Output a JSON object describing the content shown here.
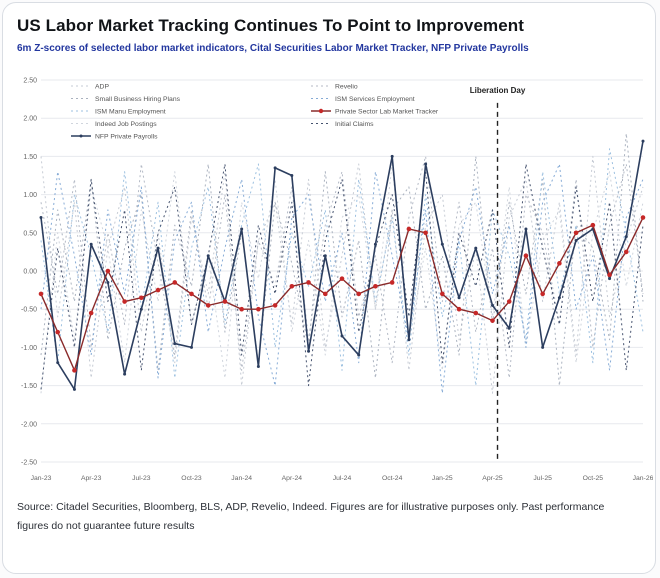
{
  "header": {
    "title": "US Labor Market Tracking Continues To Point to Improvement",
    "subtitle": "6m Z-scores of selected labor market indicators, Cital Securities Labor Market Tracker, NFP Private Payrolls"
  },
  "footer": {
    "source_text": "Source: Citadel Securities, Bloomberg, BLS, ADP, Revelio, Indeed. Figures are for illustrative purposes only. Past performance figures do not guarantee future results"
  },
  "colors": {
    "accent_blue": "#23379f",
    "grid": "#e7e9ee",
    "tick_text": "#666666",
    "annotation": "#222222"
  },
  "chart_data": {
    "type": "line",
    "title": "US Labor Market Tracking Continues To Point to Improvement",
    "ylabel": "6m Z-score",
    "ylim": [
      -2.5,
      2.5
    ],
    "ytick_step": 0.5,
    "xtick_every": 3,
    "grid": true,
    "legend_position": "top-inside",
    "annotation": {
      "label": "Liberation Day",
      "x_index": 27.3
    },
    "x": [
      "Jan-23",
      "Feb-23",
      "Mar-23",
      "Apr-23",
      "May-23",
      "Jun-23",
      "Jul-23",
      "Aug-23",
      "Sep-23",
      "Oct-23",
      "Nov-23",
      "Dec-23",
      "Jan-24",
      "Feb-24",
      "Mar-24",
      "Apr-24",
      "May-24",
      "Jun-24",
      "Jul-24",
      "Aug-24",
      "Sep-24",
      "Oct-24",
      "Nov-24",
      "Dec-24",
      "Jan-25",
      "Feb-25",
      "Mar-25",
      "Apr-25",
      "May-25",
      "Jun-25",
      "Jul-25",
      "Aug-25",
      "Sep-25",
      "Oct-25",
      "Nov-25",
      "Dec-25",
      "Jan-26"
    ],
    "series": [
      {
        "name": "ADP",
        "color": "#c6cbd4",
        "dash": "2 3",
        "width": 1,
        "marker": false,
        "marker_color": "",
        "marker_r": 0,
        "legend_col": 0,
        "legend_row": 0,
        "values": [
          1.5,
          -0.6,
          0.9,
          -1.4,
          0.3,
          1.1,
          -0.8,
          0.5,
          -1.2,
          0.7,
          -0.3,
          1.3,
          -1.5,
          0.4,
          0.9,
          -0.7,
          1.2,
          -1.0,
          0.2,
          1.4,
          -0.5,
          0.8,
          -1.3,
          0.6,
          1.0,
          -0.9,
          0.3,
          -1.6,
          0.7,
          1.2,
          -0.4,
          0.9,
          -1.1,
          1.5,
          -0.6,
          0.4,
          1.1
        ]
      },
      {
        "name": "Small Business Hiring Plans",
        "color": "#aab2bf",
        "dash": "2 3",
        "width": 1,
        "marker": false,
        "marker_color": "",
        "marker_r": 0,
        "legend_col": 0,
        "legend_row": 1,
        "values": [
          -1.1,
          0.8,
          -0.4,
          1.2,
          -0.9,
          0.3,
          1.0,
          -1.3,
          0.6,
          -0.2,
          1.4,
          -0.8,
          0.5,
          -1.2,
          0.9,
          0.1,
          -1.0,
          1.3,
          -0.6,
          0.4,
          -1.4,
          0.8,
          1.1,
          -0.5,
          0.2,
          -1.1,
          1.5,
          -0.7,
          0.9,
          -0.3,
          1.2,
          -1.5,
          0.6,
          0.3,
          -0.9,
          1.8,
          -0.4
        ]
      },
      {
        "name": "ISM Manu Employment",
        "color": "#9cc0e0",
        "dash": "2 3",
        "width": 1,
        "marker": false,
        "marker_color": "",
        "marker_r": 0,
        "legend_col": 0,
        "legend_row": 2,
        "values": [
          0.4,
          -1.2,
          1.0,
          0.2,
          -0.8,
          1.3,
          -0.5,
          0.9,
          -1.4,
          0.3,
          1.1,
          -0.7,
          0.6,
          1.4,
          -1.0,
          0.5,
          -0.2,
          0.8,
          -1.3,
          1.2,
          -0.4,
          0.7,
          -1.1,
          1.0,
          -0.6,
          0.4,
          -1.5,
          0.8,
          0.2,
          -0.9,
          1.3,
          -0.3,
          0.6,
          -1.2,
          1.6,
          0.5,
          -0.8
        ]
      },
      {
        "name": "Indeed Job Postings",
        "color": "#d0d5dd",
        "dash": "2 3",
        "width": 1,
        "marker": false,
        "marker_color": "",
        "marker_r": 0,
        "legend_col": 0,
        "legend_row": 3,
        "values": [
          -1.6,
          0.5,
          -0.9,
          1.1,
          0.3,
          -1.2,
          0.8,
          -0.4,
          1.3,
          -0.7,
          0.2,
          -1.4,
          0.9,
          -0.1,
          1.2,
          -0.8,
          0.4,
          -1.1,
          0.7,
          1.0,
          -0.5,
          1.4,
          -0.9,
          0.3,
          -1.3,
          0.6,
          0.9,
          -0.6,
          1.1,
          -1.0,
          0.4,
          0.8,
          -1.2,
          0.5,
          1.3,
          -0.2,
          0.9
        ]
      },
      {
        "name": "Revelio",
        "color": "#b4bac6",
        "dash": "2 3",
        "width": 1,
        "marker": false,
        "marker_color": "",
        "marker_r": 0,
        "legend_col": 1,
        "legend_row": 0,
        "values": [
          0.9,
          -0.3,
          1.2,
          -1.0,
          0.5,
          -0.7,
          1.4,
          0.1,
          -1.1,
          0.8,
          -0.5,
          1.0,
          -1.3,
          0.4,
          -0.2,
          1.1,
          -0.9,
          0.6,
          1.3,
          -0.6,
          0.2,
          -1.2,
          0.7,
          1.5,
          -0.4,
          0.9,
          -0.8,
          0.3,
          -1.4,
          1.0,
          0.5,
          -0.7,
          1.2,
          -1.0,
          0.6,
          1.4,
          -0.3
        ]
      },
      {
        "name": "ISM Services Employment",
        "color": "#86abd6",
        "dash": "2 3",
        "width": 1,
        "marker": false,
        "marker_color": "",
        "marker_r": 0,
        "legend_col": 1,
        "legend_row": 1,
        "values": [
          -0.5,
          1.3,
          0.2,
          -1.1,
          0.8,
          -0.3,
          1.1,
          -1.4,
          0.4,
          0.9,
          -0.8,
          0.3,
          1.2,
          -0.6,
          -1.5,
          0.7,
          1.0,
          -0.4,
          0.5,
          -1.2,
          1.3,
          0.2,
          -0.9,
          0.8,
          -1.6,
          0.4,
          1.1,
          -0.3,
          0.6,
          -1.0,
          0.9,
          1.4,
          -0.5,
          0.2,
          -1.3,
          0.7,
          1.2
        ]
      },
      {
        "name": "Initial Claims",
        "color": "#45526e",
        "dash": "2 3",
        "width": 1,
        "marker": false,
        "marker_color": "",
        "marker_r": 0,
        "legend_col": 1,
        "legend_row": 3,
        "values": [
          -1.55,
          0.3,
          -1.0,
          1.2,
          -0.4,
          0.8,
          -1.3,
          0.5,
          1.1,
          -0.7,
          0.2,
          1.4,
          -1.1,
          0.6,
          -0.3,
          0.9,
          -1.5,
          0.4,
          1.2,
          -0.8,
          0.3,
          1.0,
          -0.6,
          1.3,
          -1.2,
          0.5,
          -0.2,
          0.8,
          -1.0,
          1.4,
          0.3,
          -0.7,
          1.1,
          -0.4,
          0.9,
          -1.3,
          0.6
        ]
      },
      {
        "name": "NFP Private Payrolls",
        "color": "#2c3e5f",
        "dash": "",
        "width": 1.6,
        "marker": true,
        "marker_color": "#2c3e5f",
        "marker_r": 1.5,
        "legend_col": 0,
        "legend_row": 4,
        "values": [
          0.7,
          -1.2,
          -1.55,
          0.35,
          -0.15,
          -1.35,
          -0.5,
          0.3,
          -0.95,
          -1.0,
          0.2,
          -0.4,
          0.55,
          -1.25,
          1.35,
          1.25,
          -1.05,
          0.2,
          -0.85,
          -1.1,
          0.35,
          1.5,
          -0.9,
          1.4,
          0.35,
          -0.35,
          0.3,
          -0.45,
          -0.75,
          0.55,
          -1.0,
          -0.35,
          0.4,
          0.55,
          -0.1,
          0.45,
          1.7
        ]
      },
      {
        "name": "Private Sector Lab Market Tracker",
        "color": "#8a2a2a",
        "dash": "",
        "width": 1.4,
        "marker": true,
        "marker_color": "#c62828",
        "marker_r": 2.3,
        "legend_col": 1,
        "legend_row": 2,
        "values": [
          -0.3,
          -0.8,
          -1.3,
          -0.55,
          0.0,
          -0.4,
          -0.35,
          -0.25,
          -0.15,
          -0.3,
          -0.45,
          -0.4,
          -0.5,
          -0.5,
          -0.45,
          -0.2,
          -0.15,
          -0.3,
          -0.1,
          -0.3,
          -0.2,
          -0.15,
          0.55,
          0.5,
          -0.3,
          -0.5,
          -0.55,
          -0.65,
          -0.4,
          0.2,
          -0.3,
          0.1,
          0.5,
          0.6,
          -0.05,
          0.25,
          0.7
        ]
      }
    ]
  }
}
